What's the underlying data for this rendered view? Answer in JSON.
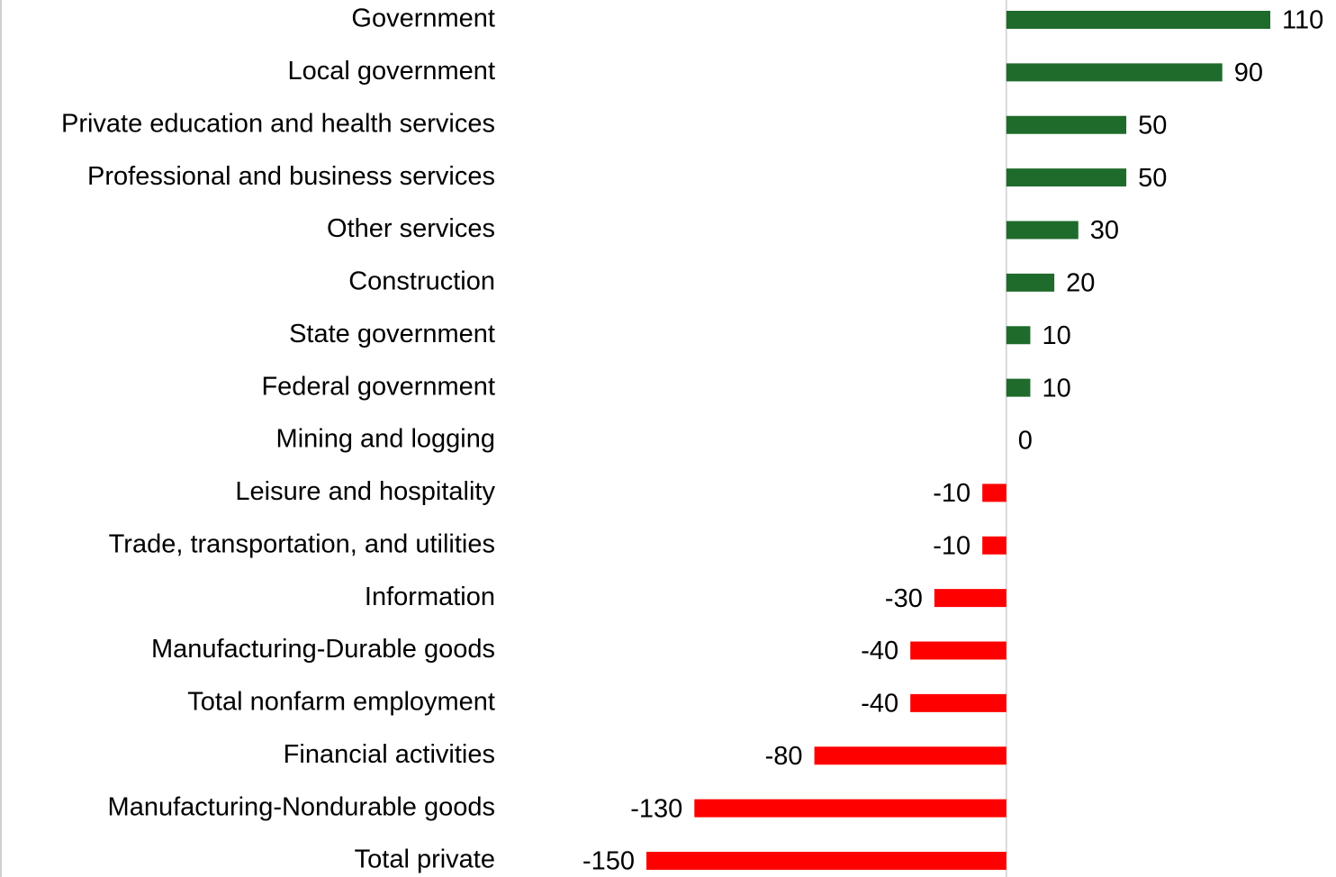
{
  "chart_data": {
    "type": "bar",
    "orientation": "horizontal",
    "categories": [
      "Government",
      "Local government",
      "Private education and health services",
      "Professional and business services",
      "Other services",
      "Construction",
      "State government",
      "Federal government",
      "Mining and logging",
      "Leisure and hospitality",
      "Trade, transportation, and utilities",
      "Information",
      "Manufacturing-Durable goods",
      "Total nonfarm employment",
      "Financial activities",
      "Manufacturing-Nondurable goods",
      "Total private"
    ],
    "values": [
      110,
      90,
      50,
      50,
      30,
      20,
      10,
      10,
      0,
      -10,
      -10,
      -30,
      -40,
      -40,
      -80,
      -130,
      -150
    ],
    "positive_color": "#1e6b2b",
    "negative_color": "#ff0000",
    "grid": false
  }
}
